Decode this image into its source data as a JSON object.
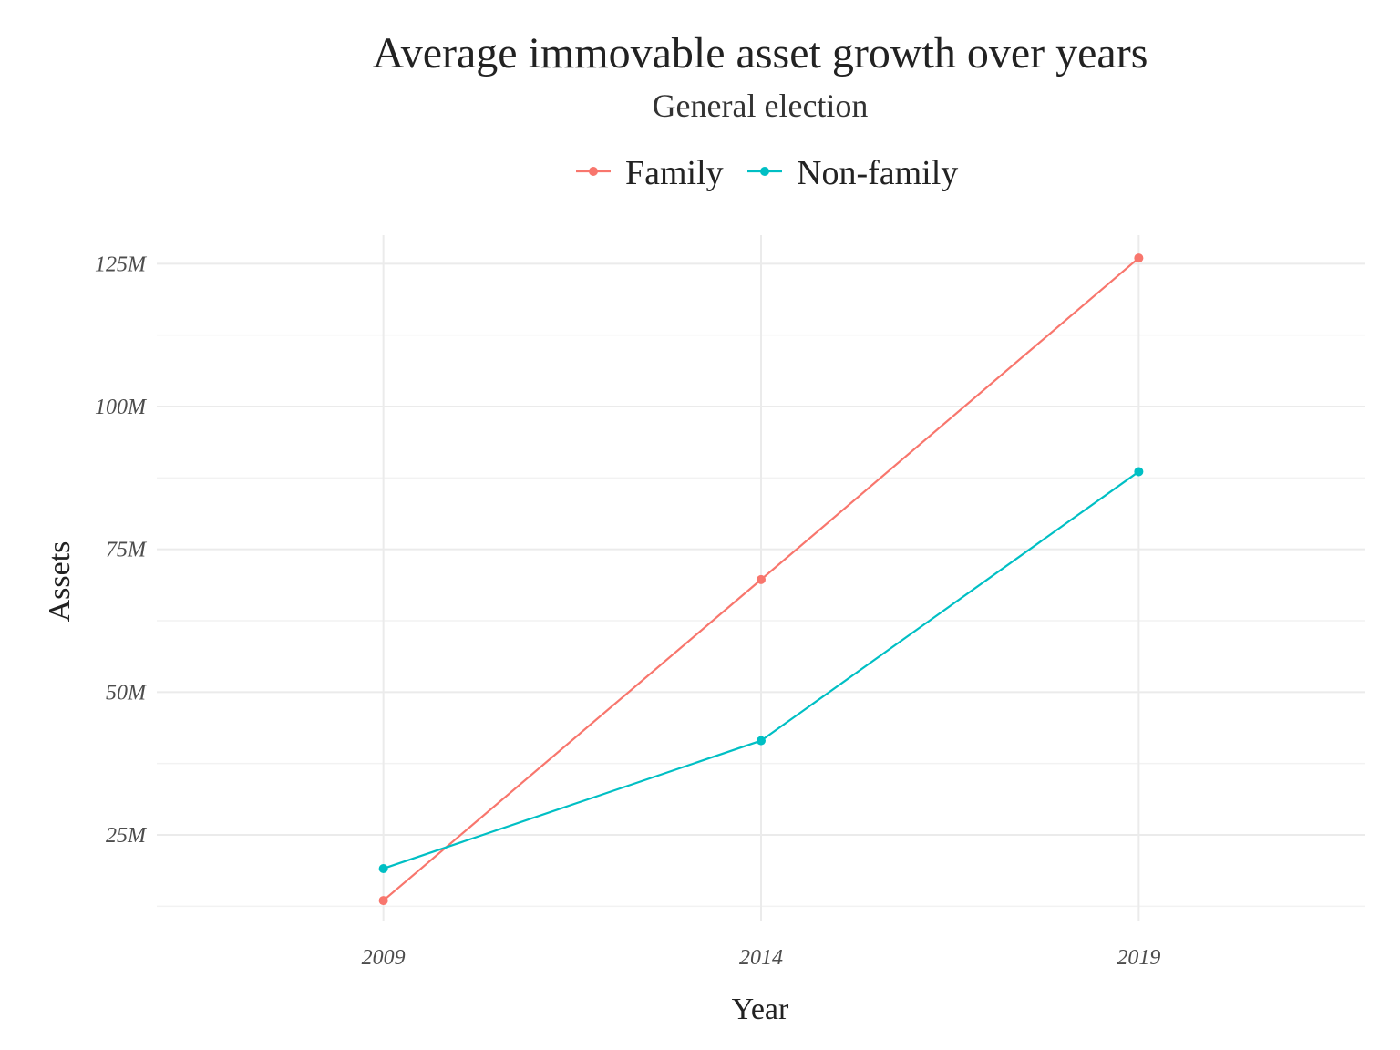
{
  "chart_data": {
    "type": "line",
    "title": "Average immovable asset growth over years",
    "subtitle": "General election",
    "xlabel": "Year",
    "ylabel": "Assets",
    "categories": [
      "2009",
      "2014",
      "2019"
    ],
    "series": [
      {
        "name": "Family",
        "color": "#F8766D",
        "values": [
          13500000,
          69700000,
          126000000
        ]
      },
      {
        "name": "Non-family",
        "color": "#00BFC4",
        "values": [
          19100000,
          41500000,
          88600000
        ]
      }
    ],
    "ylim": [
      10000000,
      130000000
    ],
    "y_ticks": [
      25000000,
      50000000,
      75000000,
      100000000,
      125000000
    ],
    "y_tick_labels": [
      "25M",
      "50M",
      "75M",
      "100M",
      "125M"
    ],
    "legend_position": "top",
    "grid": true
  }
}
